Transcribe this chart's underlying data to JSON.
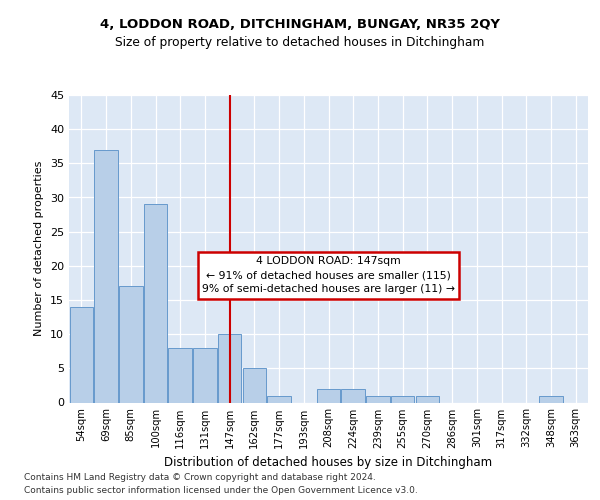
{
  "title1": "4, LODDON ROAD, DITCHINGHAM, BUNGAY, NR35 2QY",
  "title2": "Size of property relative to detached houses in Ditchingham",
  "xlabel": "Distribution of detached houses by size in Ditchingham",
  "ylabel": "Number of detached properties",
  "categories": [
    "54sqm",
    "69sqm",
    "85sqm",
    "100sqm",
    "116sqm",
    "131sqm",
    "147sqm",
    "162sqm",
    "177sqm",
    "193sqm",
    "208sqm",
    "224sqm",
    "239sqm",
    "255sqm",
    "270sqm",
    "286sqm",
    "301sqm",
    "317sqm",
    "332sqm",
    "348sqm",
    "363sqm"
  ],
  "values": [
    14,
    37,
    17,
    29,
    8,
    8,
    10,
    5,
    1,
    0,
    2,
    2,
    1,
    1,
    1,
    0,
    0,
    0,
    0,
    1,
    0
  ],
  "bar_color": "#b8cfe8",
  "bar_edge_color": "#6699cc",
  "highlight_index": 6,
  "highlight_line_color": "#cc0000",
  "ylim": [
    0,
    45
  ],
  "yticks": [
    0,
    5,
    10,
    15,
    20,
    25,
    30,
    35,
    40,
    45
  ],
  "annotation_title": "4 LODDON ROAD: 147sqm",
  "annotation_line1": "← 91% of detached houses are smaller (115)",
  "annotation_line2": "9% of semi-detached houses are larger (11) →",
  "annotation_box_color": "#ffffff",
  "annotation_box_edge": "#cc0000",
  "footer1": "Contains HM Land Registry data © Crown copyright and database right 2024.",
  "footer2": "Contains public sector information licensed under the Open Government Licence v3.0.",
  "fig_bg_color": "#ffffff",
  "plot_bg_color": "#dde8f5"
}
